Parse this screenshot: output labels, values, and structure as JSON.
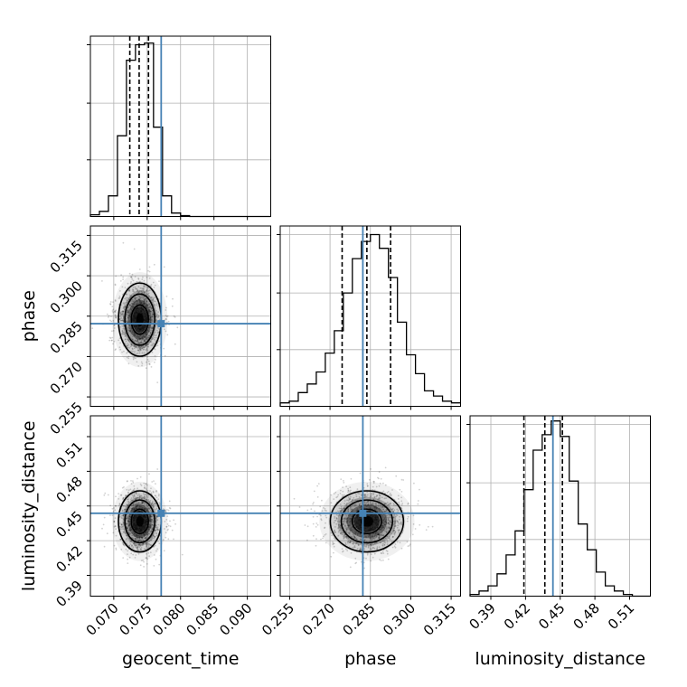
{
  "chart_data": {
    "type": "corner",
    "parameters": [
      {
        "name": "geocent_time",
        "label": "geocent_time",
        "range": [
          0.0665,
          0.0935
        ],
        "ticks": [
          "0.070",
          "0.075",
          "0.080",
          "0.085",
          "0.090"
        ],
        "tick_values": [
          0.07,
          0.075,
          0.08,
          0.085,
          0.09
        ]
      },
      {
        "name": "phase",
        "label": "phase",
        "range": [
          0.2515,
          0.3185
        ],
        "ticks": [
          "0.255",
          "0.270",
          "0.285",
          "0.300",
          "0.315"
        ],
        "tick_values": [
          0.255,
          0.27,
          0.285,
          0.3,
          0.315
        ]
      },
      {
        "name": "luminosity_distance",
        "label": "luminosity_distance",
        "range": [
          0.372,
          0.528
        ],
        "ticks": [
          "0.39",
          "0.42",
          "0.45",
          "0.48",
          "0.51"
        ],
        "tick_values": [
          0.39,
          0.42,
          0.45,
          0.48,
          0.51
        ]
      }
    ],
    "truths": {
      "geocent_time": 0.0771,
      "phase": 0.2822,
      "luminosity_distance": 0.4437
    },
    "truth_color": "#4682b4",
    "quantiles": {
      "geocent_time": [
        0.0724,
        0.0738,
        0.0752
      ],
      "phase": [
        0.2745,
        0.2837,
        0.2925
      ],
      "luminosity_distance": [
        0.4186,
        0.4367,
        0.4519
      ]
    },
    "histograms": {
      "geocent_time": {
        "edges_start": 0.0665,
        "bin_width": 0.00135,
        "counts": [
          0.01,
          0.03,
          0.12,
          0.47,
          0.91,
          1.0,
          1.01,
          0.52,
          0.12,
          0.02,
          0.005,
          0.0,
          0.0,
          0.0,
          0.0,
          0.0,
          0.0,
          0.0,
          0.0,
          0.0
        ]
      },
      "phase": {
        "edges_start": 0.2515,
        "bin_width": 0.00335,
        "counts": [
          0.02,
          0.03,
          0.08,
          0.13,
          0.2,
          0.31,
          0.44,
          0.66,
          0.86,
          0.96,
          1.0,
          0.92,
          0.75,
          0.49,
          0.3,
          0.19,
          0.09,
          0.06,
          0.03,
          0.02
        ]
      },
      "luminosity_distance": {
        "edges_start": 0.372,
        "bin_width": 0.0078,
        "counts": [
          0.01,
          0.03,
          0.06,
          0.13,
          0.24,
          0.38,
          0.62,
          0.85,
          0.94,
          1.02,
          0.93,
          0.67,
          0.42,
          0.27,
          0.14,
          0.06,
          0.03,
          0.01,
          0.0,
          0.0
        ]
      }
    },
    "posterior_center": {
      "geocent_time": 0.0739,
      "phase": 0.2837,
      "luminosity_distance": 0.4367
    },
    "posterior_sigma": {
      "geocent_time": 0.0016,
      "phase": 0.0068,
      "luminosity_distance": 0.0132
    },
    "grid": true
  }
}
